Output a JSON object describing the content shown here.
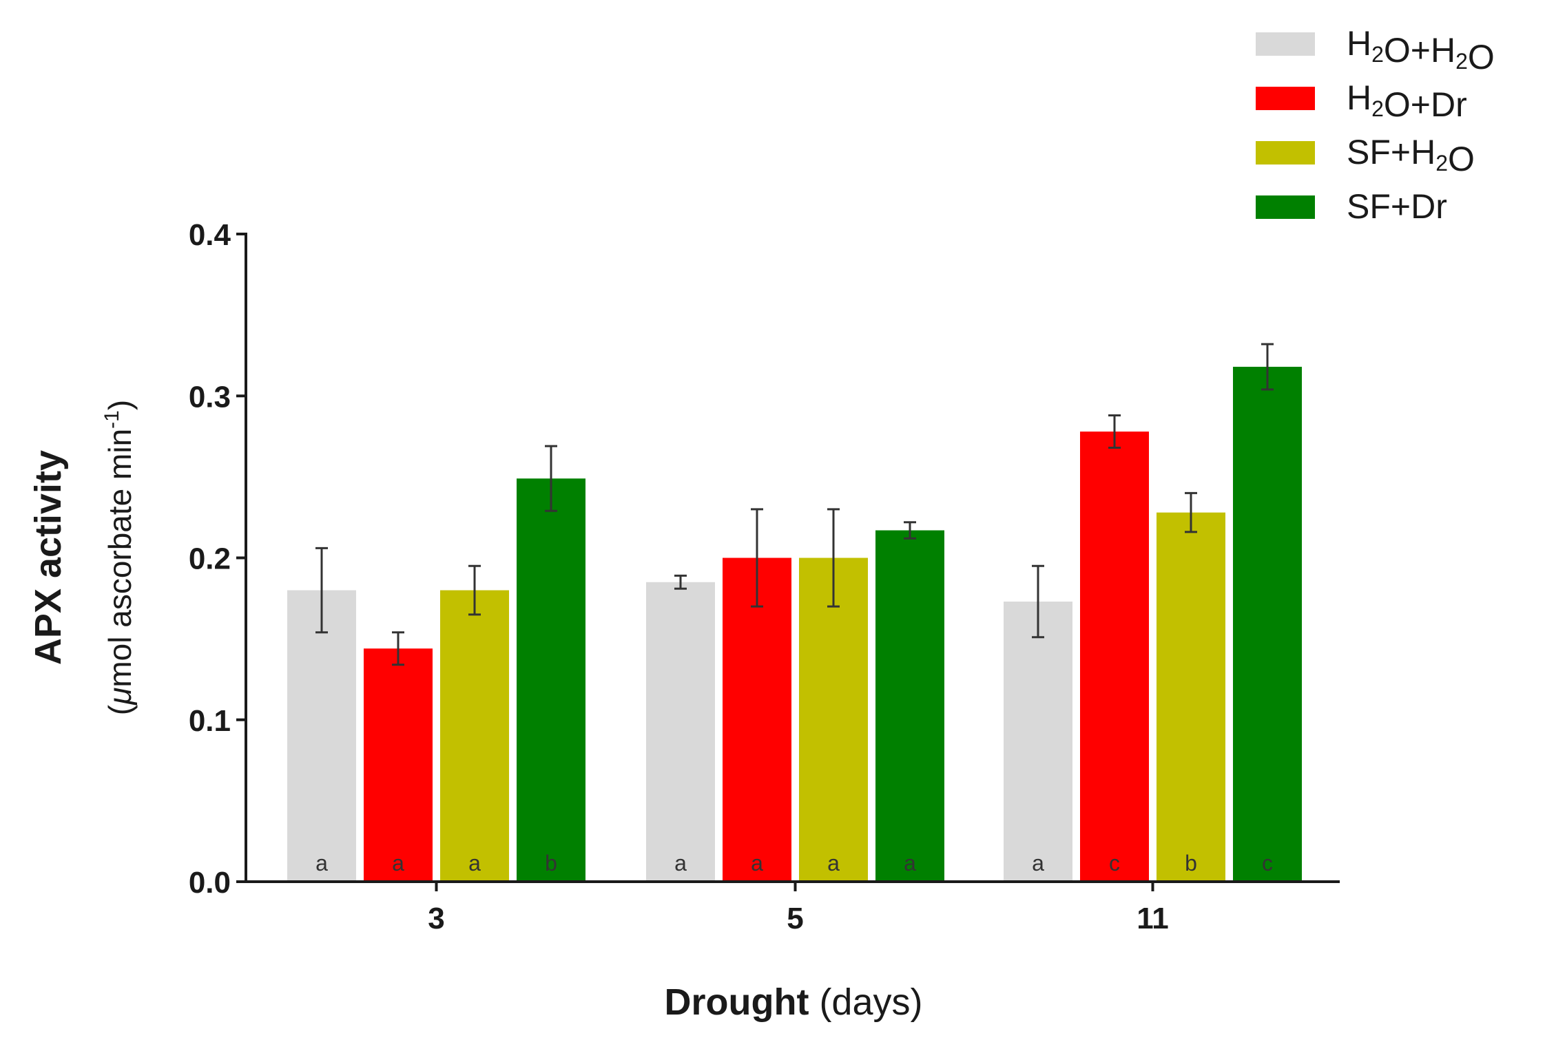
{
  "chart_data": {
    "type": "bar",
    "xlabel_bold": "Drought",
    "xlabel_rest": " (days)",
    "ylabel_line1": "APX activity",
    "ylabel_line2_prefix": "(",
    "ylabel_line2_mu": "μ",
    "ylabel_line2_main": "mol ascorbate min",
    "ylabel_line2_sup": "-1",
    "ylabel_line2_suffix": ")",
    "ylim": [
      0,
      0.4
    ],
    "yticks": [
      "0.0",
      "0.1",
      "0.2",
      "0.3",
      "0.4"
    ],
    "ytick_values": [
      0,
      0.1,
      0.2,
      0.3,
      0.4
    ],
    "categories": [
      "3",
      "5",
      "11"
    ],
    "legend_position": "top-right",
    "series": [
      {
        "name": "H2O+H2O",
        "label_parts": [
          [
            "H",
            ""
          ],
          [
            "2",
            "sub"
          ],
          [
            "O+H",
            ""
          ],
          [
            "2",
            "sub"
          ],
          [
            "O",
            ""
          ]
        ],
        "color": "#d9d9d9",
        "values": [
          0.18,
          0.185,
          0.173
        ],
        "errors": [
          0.026,
          0.004,
          0.022
        ],
        "letters": [
          "a",
          "a",
          "a"
        ]
      },
      {
        "name": "H2O+Dr",
        "label_parts": [
          [
            "H",
            ""
          ],
          [
            "2",
            "sub"
          ],
          [
            "O+Dr",
            ""
          ]
        ],
        "color": "#ff0000",
        "values": [
          0.144,
          0.2,
          0.278
        ],
        "errors": [
          0.01,
          0.03,
          0.01
        ],
        "letters": [
          "a",
          "a",
          "c"
        ]
      },
      {
        "name": "SF+H2O",
        "label_parts": [
          [
            "SF+H",
            ""
          ],
          [
            "2",
            "sub"
          ],
          [
            "O",
            ""
          ]
        ],
        "color": "#c2c000",
        "values": [
          0.18,
          0.2,
          0.228
        ],
        "errors": [
          0.015,
          0.03,
          0.012
        ],
        "letters": [
          "a",
          "a",
          "b"
        ]
      },
      {
        "name": "SF+Dr",
        "label_parts": [
          [
            "SF+Dr",
            ""
          ]
        ],
        "color": "#008000",
        "values": [
          0.249,
          0.217,
          0.318
        ],
        "errors": [
          0.02,
          0.005,
          0.014
        ],
        "letters": [
          "b",
          "a",
          "c"
        ]
      }
    ]
  }
}
